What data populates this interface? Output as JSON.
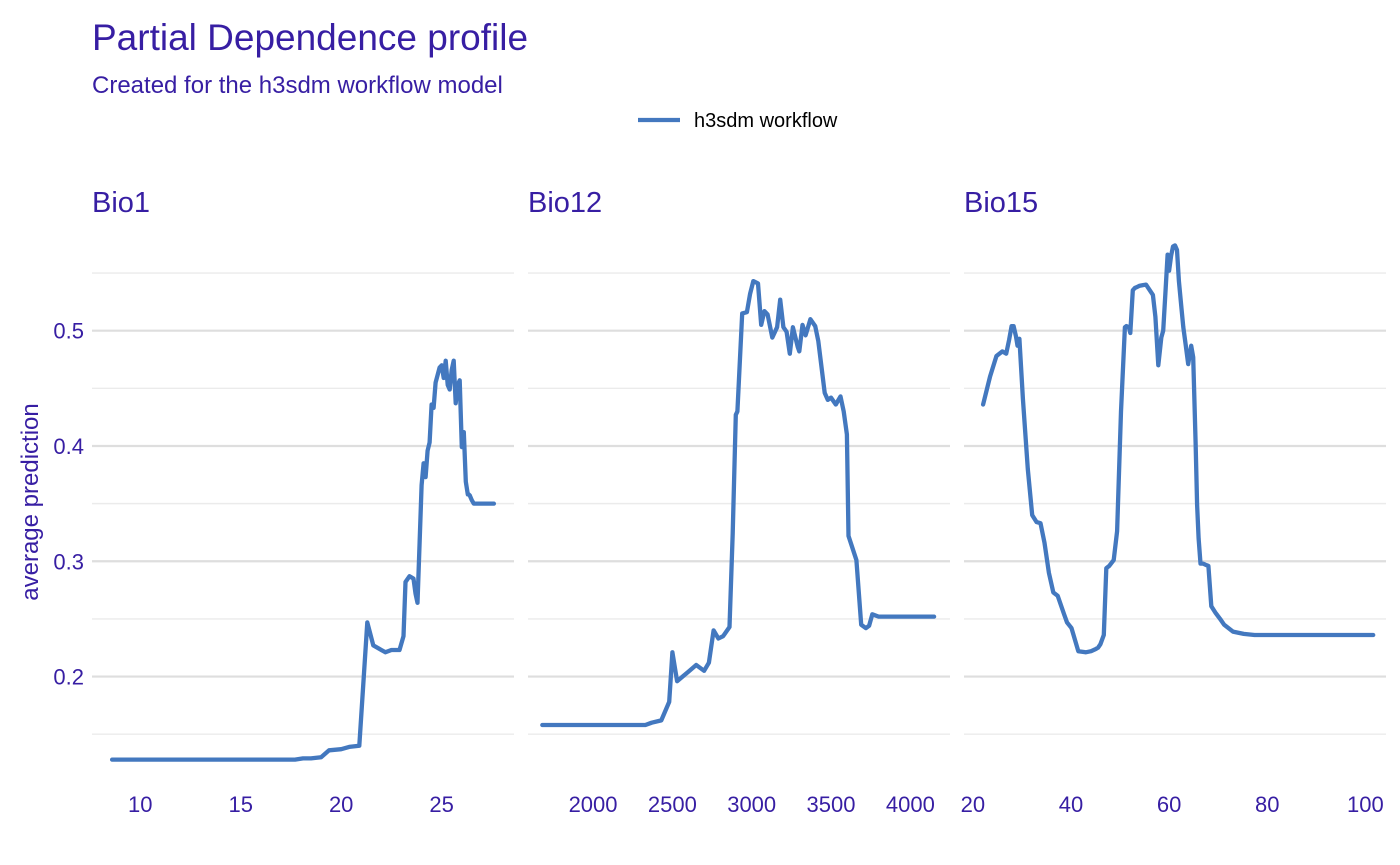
{
  "chart_data": {
    "type": "line",
    "title": "Partial Dependence profile",
    "subtitle": "Created for the h3sdm workflow model",
    "ylabel": "average prediction",
    "legend": {
      "position": "top",
      "entries": [
        "h3sdm workflow"
      ]
    },
    "series_color": "#4378bf",
    "text_color": "#371ea3",
    "ylim": [
      0.112,
      0.583
    ],
    "y_ticks": [
      0.2,
      0.3,
      0.4,
      0.5
    ],
    "grid": true,
    "facets": [
      {
        "label": "Bio1",
        "xlim": [
          7.6,
          28.6
        ],
        "x_ticks": [
          10,
          15,
          20,
          25
        ],
        "series": [
          {
            "name": "h3sdm workflow",
            "x": [
              8.6,
              17.7,
              18.1,
              18.5,
              19.0,
              19.4,
              20.0,
              20.4,
              20.9,
              21.3,
              21.6,
              22.2,
              22.5,
              22.9,
              23.1,
              23.2,
              23.4,
              23.6,
              23.7,
              23.8,
              23.9,
              24.0,
              24.1,
              24.2,
              24.3,
              24.4,
              24.5,
              24.6,
              24.7,
              24.9,
              25.0,
              25.1,
              25.2,
              25.3,
              25.4,
              25.5,
              25.6,
              25.7,
              25.8,
              25.9,
              26.0,
              26.1,
              26.2,
              26.3,
              26.35,
              26.4,
              26.5,
              26.6,
              26.8,
              27.0,
              27.6
            ],
            "values": [
              0.128,
              0.128,
              0.129,
              0.129,
              0.13,
              0.136,
              0.137,
              0.139,
              0.14,
              0.247,
              0.227,
              0.221,
              0.223,
              0.223,
              0.235,
              0.282,
              0.287,
              0.285,
              0.272,
              0.264,
              0.316,
              0.366,
              0.385,
              0.373,
              0.396,
              0.403,
              0.436,
              0.433,
              0.455,
              0.468,
              0.47,
              0.459,
              0.474,
              0.453,
              0.449,
              0.466,
              0.474,
              0.437,
              0.453,
              0.457,
              0.399,
              0.412,
              0.369,
              0.358,
              0.358,
              0.357,
              0.353,
              0.35,
              0.35,
              0.35,
              0.35
            ]
          }
        ]
      },
      {
        "label": "Bio12",
        "xlim": [
          1590,
          4250
        ],
        "x_ticks": [
          2000,
          2500,
          3000,
          3500,
          4000
        ],
        "series": [
          {
            "name": "h3sdm workflow",
            "x": [
              1680,
              2330,
              2370,
              2430,
              2480,
              2500,
              2530,
              2600,
              2650,
              2700,
              2730,
              2760,
              2790,
              2820,
              2860,
              2880,
              2900,
              2910,
              2940,
              2970,
              2990,
              3010,
              3040,
              3060,
              3080,
              3100,
              3130,
              3160,
              3180,
              3200,
              3220,
              3240,
              3260,
              3290,
              3300,
              3320,
              3340,
              3370,
              3400,
              3420,
              3460,
              3480,
              3500,
              3530,
              3560,
              3580,
              3600,
              3610,
              3660,
              3690,
              3720,
              3740,
              3760,
              3800,
              4150
            ],
            "values": [
              0.158,
              0.158,
              0.16,
              0.162,
              0.178,
              0.221,
              0.196,
              0.204,
              0.21,
              0.205,
              0.212,
              0.24,
              0.233,
              0.235,
              0.243,
              0.324,
              0.427,
              0.43,
              0.515,
              0.516,
              0.532,
              0.543,
              0.541,
              0.505,
              0.517,
              0.514,
              0.494,
              0.503,
              0.527,
              0.503,
              0.499,
              0.48,
              0.503,
              0.486,
              0.482,
              0.505,
              0.496,
              0.51,
              0.504,
              0.491,
              0.446,
              0.44,
              0.442,
              0.436,
              0.443,
              0.43,
              0.41,
              0.322,
              0.301,
              0.245,
              0.242,
              0.244,
              0.254,
              0.252,
              0.252
            ]
          }
        ]
      },
      {
        "label": "Bio15",
        "xlim": [
          18.2,
          104.2
        ],
        "x_ticks": [
          20,
          40,
          60,
          80,
          100
        ],
        "series": [
          {
            "name": "h3sdm workflow",
            "x": [
              22.1,
              23.5,
              24.8,
              26.0,
              26.8,
              27.4,
              27.9,
              28.3,
              28.8,
              29.1,
              29.5,
              30.2,
              31.2,
              32.1,
              33.0,
              33.8,
              34.6,
              35.5,
              36.4,
              37.3,
              38.6,
              39.2,
              40.1,
              41.5,
              43.0,
              44.1,
              45.1,
              45.5,
              46.0,
              46.7,
              47.2,
              47.8,
              48.7,
              49.4,
              50.2,
              51.0,
              51.3,
              51.8,
              52.1,
              52.6,
              53.0,
              53.5,
              54.0,
              55.3,
              56.7,
              57.2,
              57.8,
              58.4,
              58.8,
              59.3,
              59.7,
              60.0,
              60.4,
              60.8,
              61.2,
              61.6,
              62.0,
              62.5,
              62.9,
              63.4,
              63.9,
              64.5,
              64.9,
              65.4,
              65.7,
              66.0,
              66.4,
              66.9,
              67.4,
              68.0,
              68.6,
              69.5,
              70.4,
              71.2,
              73.0,
              75.2,
              77.4,
              79.2,
              80.2,
              101.6
            ],
            "values": [
              0.436,
              0.46,
              0.478,
              0.482,
              0.48,
              0.492,
              0.504,
              0.504,
              0.495,
              0.487,
              0.493,
              0.441,
              0.38,
              0.34,
              0.334,
              0.333,
              0.316,
              0.29,
              0.273,
              0.27,
              0.254,
              0.247,
              0.242,
              0.222,
              0.221,
              0.222,
              0.224,
              0.225,
              0.228,
              0.236,
              0.294,
              0.296,
              0.301,
              0.326,
              0.43,
              0.503,
              0.504,
              0.503,
              0.498,
              0.535,
              0.537,
              0.538,
              0.539,
              0.54,
              0.531,
              0.512,
              0.47,
              0.494,
              0.5,
              0.537,
              0.566,
              0.552,
              0.565,
              0.573,
              0.574,
              0.57,
              0.543,
              0.52,
              0.503,
              0.487,
              0.471,
              0.487,
              0.477,
              0.403,
              0.349,
              0.32,
              0.298,
              0.298,
              0.297,
              0.296,
              0.261,
              0.255,
              0.25,
              0.245,
              0.239,
              0.237,
              0.236,
              0.236,
              0.236,
              0.236
            ]
          }
        ]
      }
    ]
  }
}
